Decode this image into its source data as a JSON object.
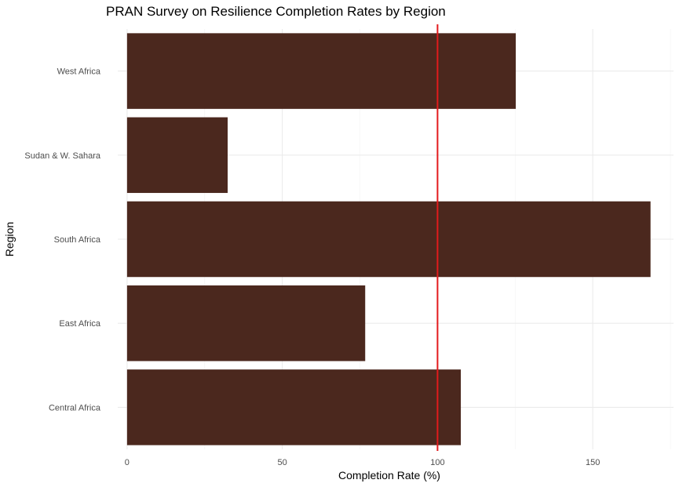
{
  "chart_data": {
    "type": "bar",
    "orientation": "horizontal",
    "title": "PRAN Survey on Resilience Completion Rates by Region",
    "xlabel": "Completion Rate (%)",
    "ylabel": "Region",
    "categories": [
      "Central Africa",
      "East Africa",
      "South Africa",
      "Sudan & W. Sahara",
      "West Africa"
    ],
    "values": [
      107.5,
      76.7,
      168.6,
      32.4,
      125.2
    ],
    "xlim": [
      -3,
      176
    ],
    "xticks": [
      0,
      50,
      100,
      150
    ],
    "reference_line": {
      "x": 100,
      "color": "#e31a1c"
    },
    "bar_color": "#4b281e",
    "grid": true,
    "legend": "none"
  }
}
